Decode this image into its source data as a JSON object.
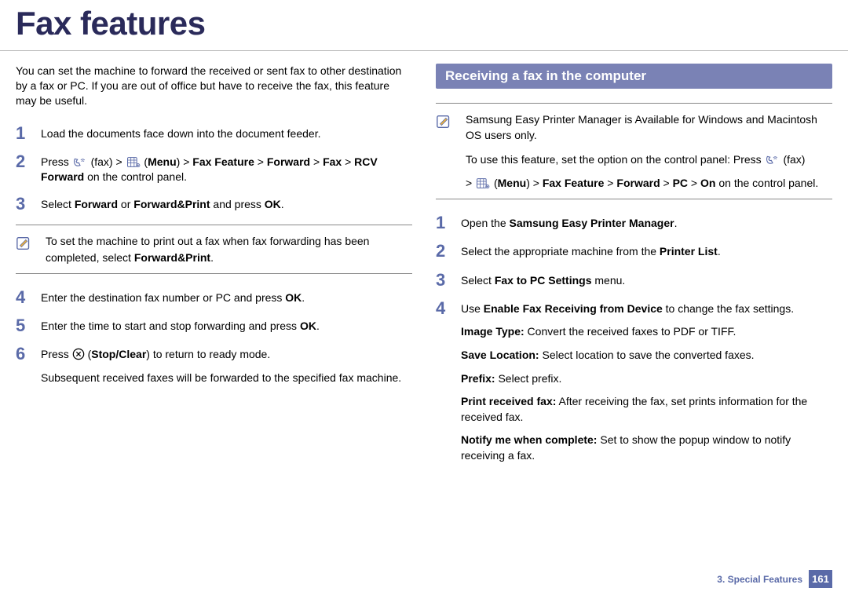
{
  "title": "Fax features",
  "colors": {
    "title": "#2a2a5a",
    "step_number": "#5a6aa8",
    "section_header_bg": "#7a82b5",
    "section_header_fg": "#ffffff",
    "footer_accent": "#5a6aa8",
    "rule": "#888888"
  },
  "left": {
    "intro": "You can set the machine to forward the received or sent fax to other destination by a fax or PC. If you are out of office but have to receive the fax, this feature may be useful.",
    "steps": [
      {
        "n": "1",
        "html": "Load the documents face down into the document feeder."
      },
      {
        "n": "2",
        "html": "Press {fax} (fax) > {menu} (<b>Menu</b>) > <b>Fax Feature</b> > <b>Forward</b> > <b>Fax</b> > <b>RCV Forward</b> on the control panel."
      },
      {
        "n": "3",
        "html": "Select <b>Forward</b> or <b>Forward&Print</b> and press <b>OK</b>."
      }
    ],
    "note": "To set the machine to print out a fax when fax forwarding has been completed, select <b>Forward&Print</b>.",
    "steps2": [
      {
        "n": "4",
        "html": "Enter the destination fax number or PC and press <b>OK</b>."
      },
      {
        "n": "5",
        "html": "Enter the time to start and stop forwarding and press <b>OK</b>."
      },
      {
        "n": "6",
        "html": "Press {stop} (<b>Stop/Clear</b>) to return to ready mode.<div class=\"sub-point\">Subsequent received faxes will be forwarded to the specified fax machine.</div>"
      }
    ]
  },
  "right": {
    "section_title": "Receiving a fax in the computer",
    "note": "Samsung Easy Printer Manager is Available for Windows and Macintosh OS users only.<div class=\"sub-point\">To use this feature, set the option on the control panel: Press {fax} (fax)</div><div class=\"sub-point\">> {menu} (<b>Menu</b>) > <b>Fax Feature</b> > <b>Forward</b> > <b>PC</b> > <b>On</b> on the control panel.</div>",
    "steps": [
      {
        "n": "1",
        "html": "Open the <b>Samsung Easy Printer Manager</b>."
      },
      {
        "n": "2",
        "html": "Select the appropriate machine from the <b>Printer List</b>."
      },
      {
        "n": "3",
        "html": "Select <b>Fax to PC Settings</b> menu."
      },
      {
        "n": "4",
        "html": "Use <b>Enable Fax Receiving from Device</b> to change the fax settings.<div class=\"sub-point\"><b>Image Type:</b> Convert the received faxes to PDF or TIFF.</div><div class=\"sub-point\"><b>Save Location:</b> Select location to save the converted faxes.</div><div class=\"sub-point\"><b>Prefix:</b> Select prefix.</div><div class=\"sub-point\"><b>Print received fax:</b> After receiving the fax, set prints information for the received fax.</div><div class=\"sub-point\"><b>Notify me when complete:</b>  Set to show the popup window to notify receiving a fax.</div>"
      }
    ]
  },
  "footer": {
    "chapter": "3.  Special Features",
    "page": "161"
  },
  "icons": {
    "fax": "fax-handset-icon",
    "menu": "menu-grid-icon",
    "stop": "stop-clear-icon",
    "note": "note-pencil-icon"
  }
}
